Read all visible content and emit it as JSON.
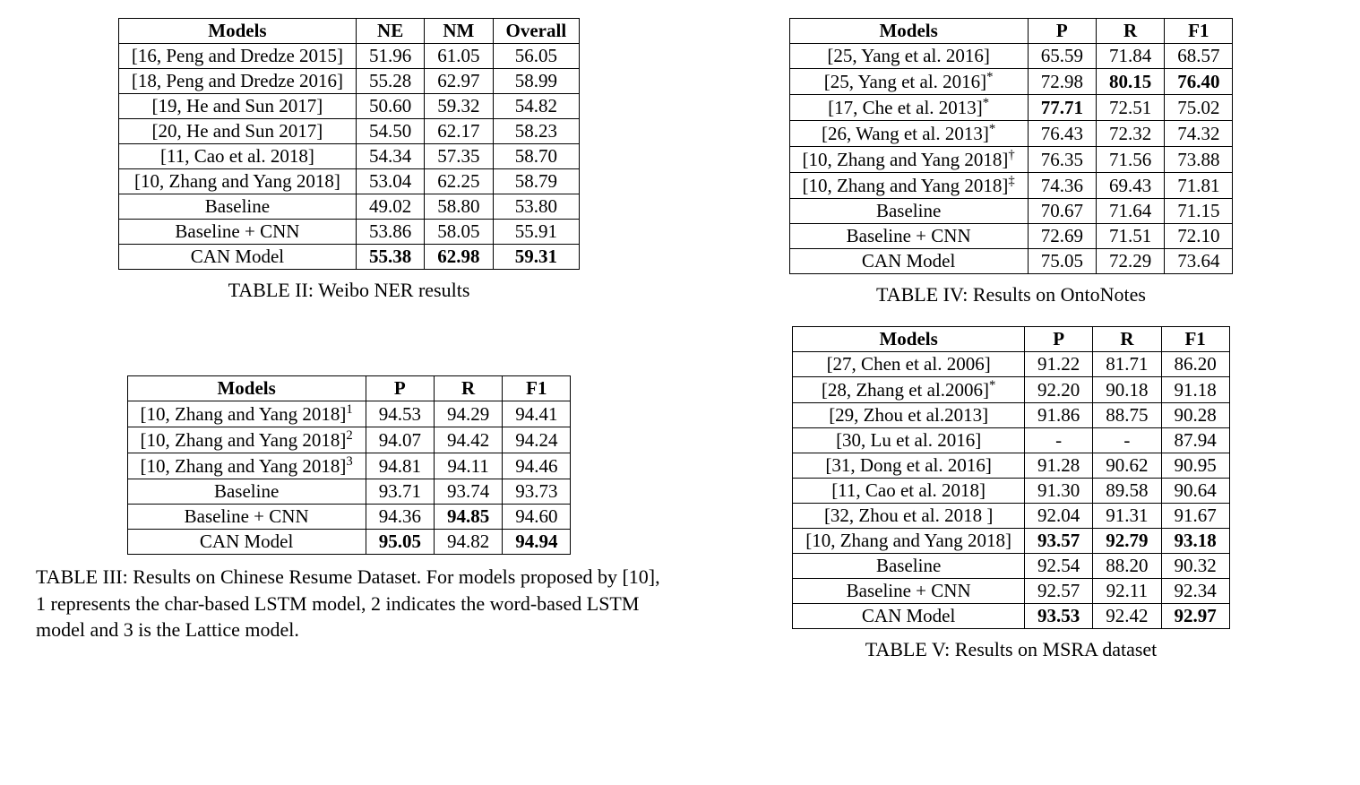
{
  "table2": {
    "caption": "TABLE II: Weibo NER results",
    "columns": [
      "Models",
      "NE",
      "NM",
      "Overall"
    ],
    "bold_map": {
      "8": [
        true,
        true,
        true
      ]
    },
    "rows": [
      [
        "[16, Peng and Dredze 2015]",
        "51.96",
        "61.05",
        "56.05"
      ],
      [
        "[18, Peng and Dredze 2016]",
        "55.28",
        "62.97",
        "58.99"
      ],
      [
        "[19, He and Sun 2017]",
        "50.60",
        "59.32",
        "54.82"
      ],
      [
        "[20, He and Sun 2017]",
        "54.50",
        "62.17",
        "58.23"
      ],
      [
        "[11, Cao et al. 2018]",
        "54.34",
        "57.35",
        "58.70"
      ],
      [
        "[10, Zhang and Yang 2018]",
        "53.04",
        "62.25",
        "58.79"
      ],
      [
        "Baseline",
        "49.02",
        "58.80",
        "53.80"
      ],
      [
        "Baseline + CNN",
        "53.86",
        "58.05",
        "55.91"
      ],
      [
        "CAN Model",
        "55.38",
        "62.98",
        "59.31"
      ]
    ],
    "section_break_after": 6
  },
  "table3": {
    "caption": "TABLE III: Results on Chinese Resume Dataset. For models proposed by [10], 1 represents the char-based LSTM model, 2 indicates the word-based LSTM model and 3 is the Lattice model.",
    "columns": [
      "Models",
      "P",
      "R",
      "F1"
    ],
    "bold_map": {
      "4": [
        false,
        true,
        false
      ],
      "5": [
        true,
        false,
        true
      ]
    },
    "sup_map": {
      "0": "1",
      "1": "2",
      "2": "3"
    },
    "rows": [
      [
        "[10, Zhang and Yang 2018]",
        "94.53",
        "94.29",
        "94.41"
      ],
      [
        "[10, Zhang and Yang 2018]",
        "94.07",
        "94.42",
        "94.24"
      ],
      [
        "[10, Zhang and Yang 2018]",
        "94.81",
        "94.11",
        "94.46"
      ],
      [
        "Baseline",
        "93.71",
        "93.74",
        "93.73"
      ],
      [
        "Baseline + CNN",
        "94.36",
        "94.85",
        "94.60"
      ],
      [
        "CAN Model",
        "95.05",
        "94.82",
        "94.94"
      ]
    ],
    "section_break_after": 3
  },
  "table4": {
    "caption": "TABLE IV: Results on OntoNotes",
    "columns": [
      "Models",
      "P",
      "R",
      "F1"
    ],
    "bold_map": {
      "1": [
        false,
        true,
        true
      ],
      "2": [
        true,
        false,
        false
      ]
    },
    "suffix_map": {
      "1": "*",
      "2": "*",
      "3": "*",
      "4": "†",
      "5": "‡"
    },
    "rows": [
      [
        "[25, Yang et al. 2016]",
        "65.59",
        "71.84",
        "68.57"
      ],
      [
        "[25, Yang et al. 2016]",
        "72.98",
        "80.15",
        "76.40"
      ],
      [
        "[17, Che et al. 2013]",
        "77.71",
        "72.51",
        "75.02"
      ],
      [
        "[26, Wang et al. 2013]",
        "76.43",
        "72.32",
        "74.32"
      ],
      [
        "[10, Zhang and Yang 2018]",
        "76.35",
        "71.56",
        "73.88"
      ],
      [
        "[10, Zhang and Yang 2018]",
        "74.36",
        "69.43",
        "71.81"
      ],
      [
        "Baseline",
        "70.67",
        "71.64",
        "71.15"
      ],
      [
        "Baseline + CNN",
        "72.69",
        "71.51",
        "72.10"
      ],
      [
        "CAN Model",
        "75.05",
        "72.29",
        "73.64"
      ]
    ],
    "section_break_after": 6
  },
  "table5": {
    "caption": "TABLE V: Results on MSRA dataset",
    "columns": [
      "Models",
      "P",
      "R",
      "F1"
    ],
    "bold_map": {
      "7": [
        true,
        true,
        true
      ],
      "10": [
        true,
        false,
        true
      ]
    },
    "suffix_map": {
      "1": "*"
    },
    "rows": [
      [
        "[27, Chen et al. 2006]",
        "91.22",
        "81.71",
        "86.20"
      ],
      [
        "[28, Zhang et al.2006]",
        "92.20",
        "90.18",
        "91.18"
      ],
      [
        "[29, Zhou et al.2013]",
        "91.86",
        "88.75",
        "90.28"
      ],
      [
        "[30, Lu et al. 2016]",
        "-",
        "-",
        "87.94"
      ],
      [
        "[31, Dong et al. 2016]",
        "91.28",
        "90.62",
        "90.95"
      ],
      [
        "[11, Cao et al. 2018]",
        "91.30",
        "89.58",
        "90.64"
      ],
      [
        "[32, Zhou et al. 2018 ]",
        "92.04",
        "91.31",
        "91.67"
      ],
      [
        "[10, Zhang and Yang 2018]",
        "93.57",
        "92.79",
        "93.18"
      ],
      [
        "Baseline",
        "92.54",
        "88.20",
        "90.32"
      ],
      [
        "Baseline + CNN",
        "92.57",
        "92.11",
        "92.34"
      ],
      [
        "CAN Model",
        "93.53",
        "92.42",
        "92.97"
      ]
    ],
    "section_break_after": 8
  }
}
